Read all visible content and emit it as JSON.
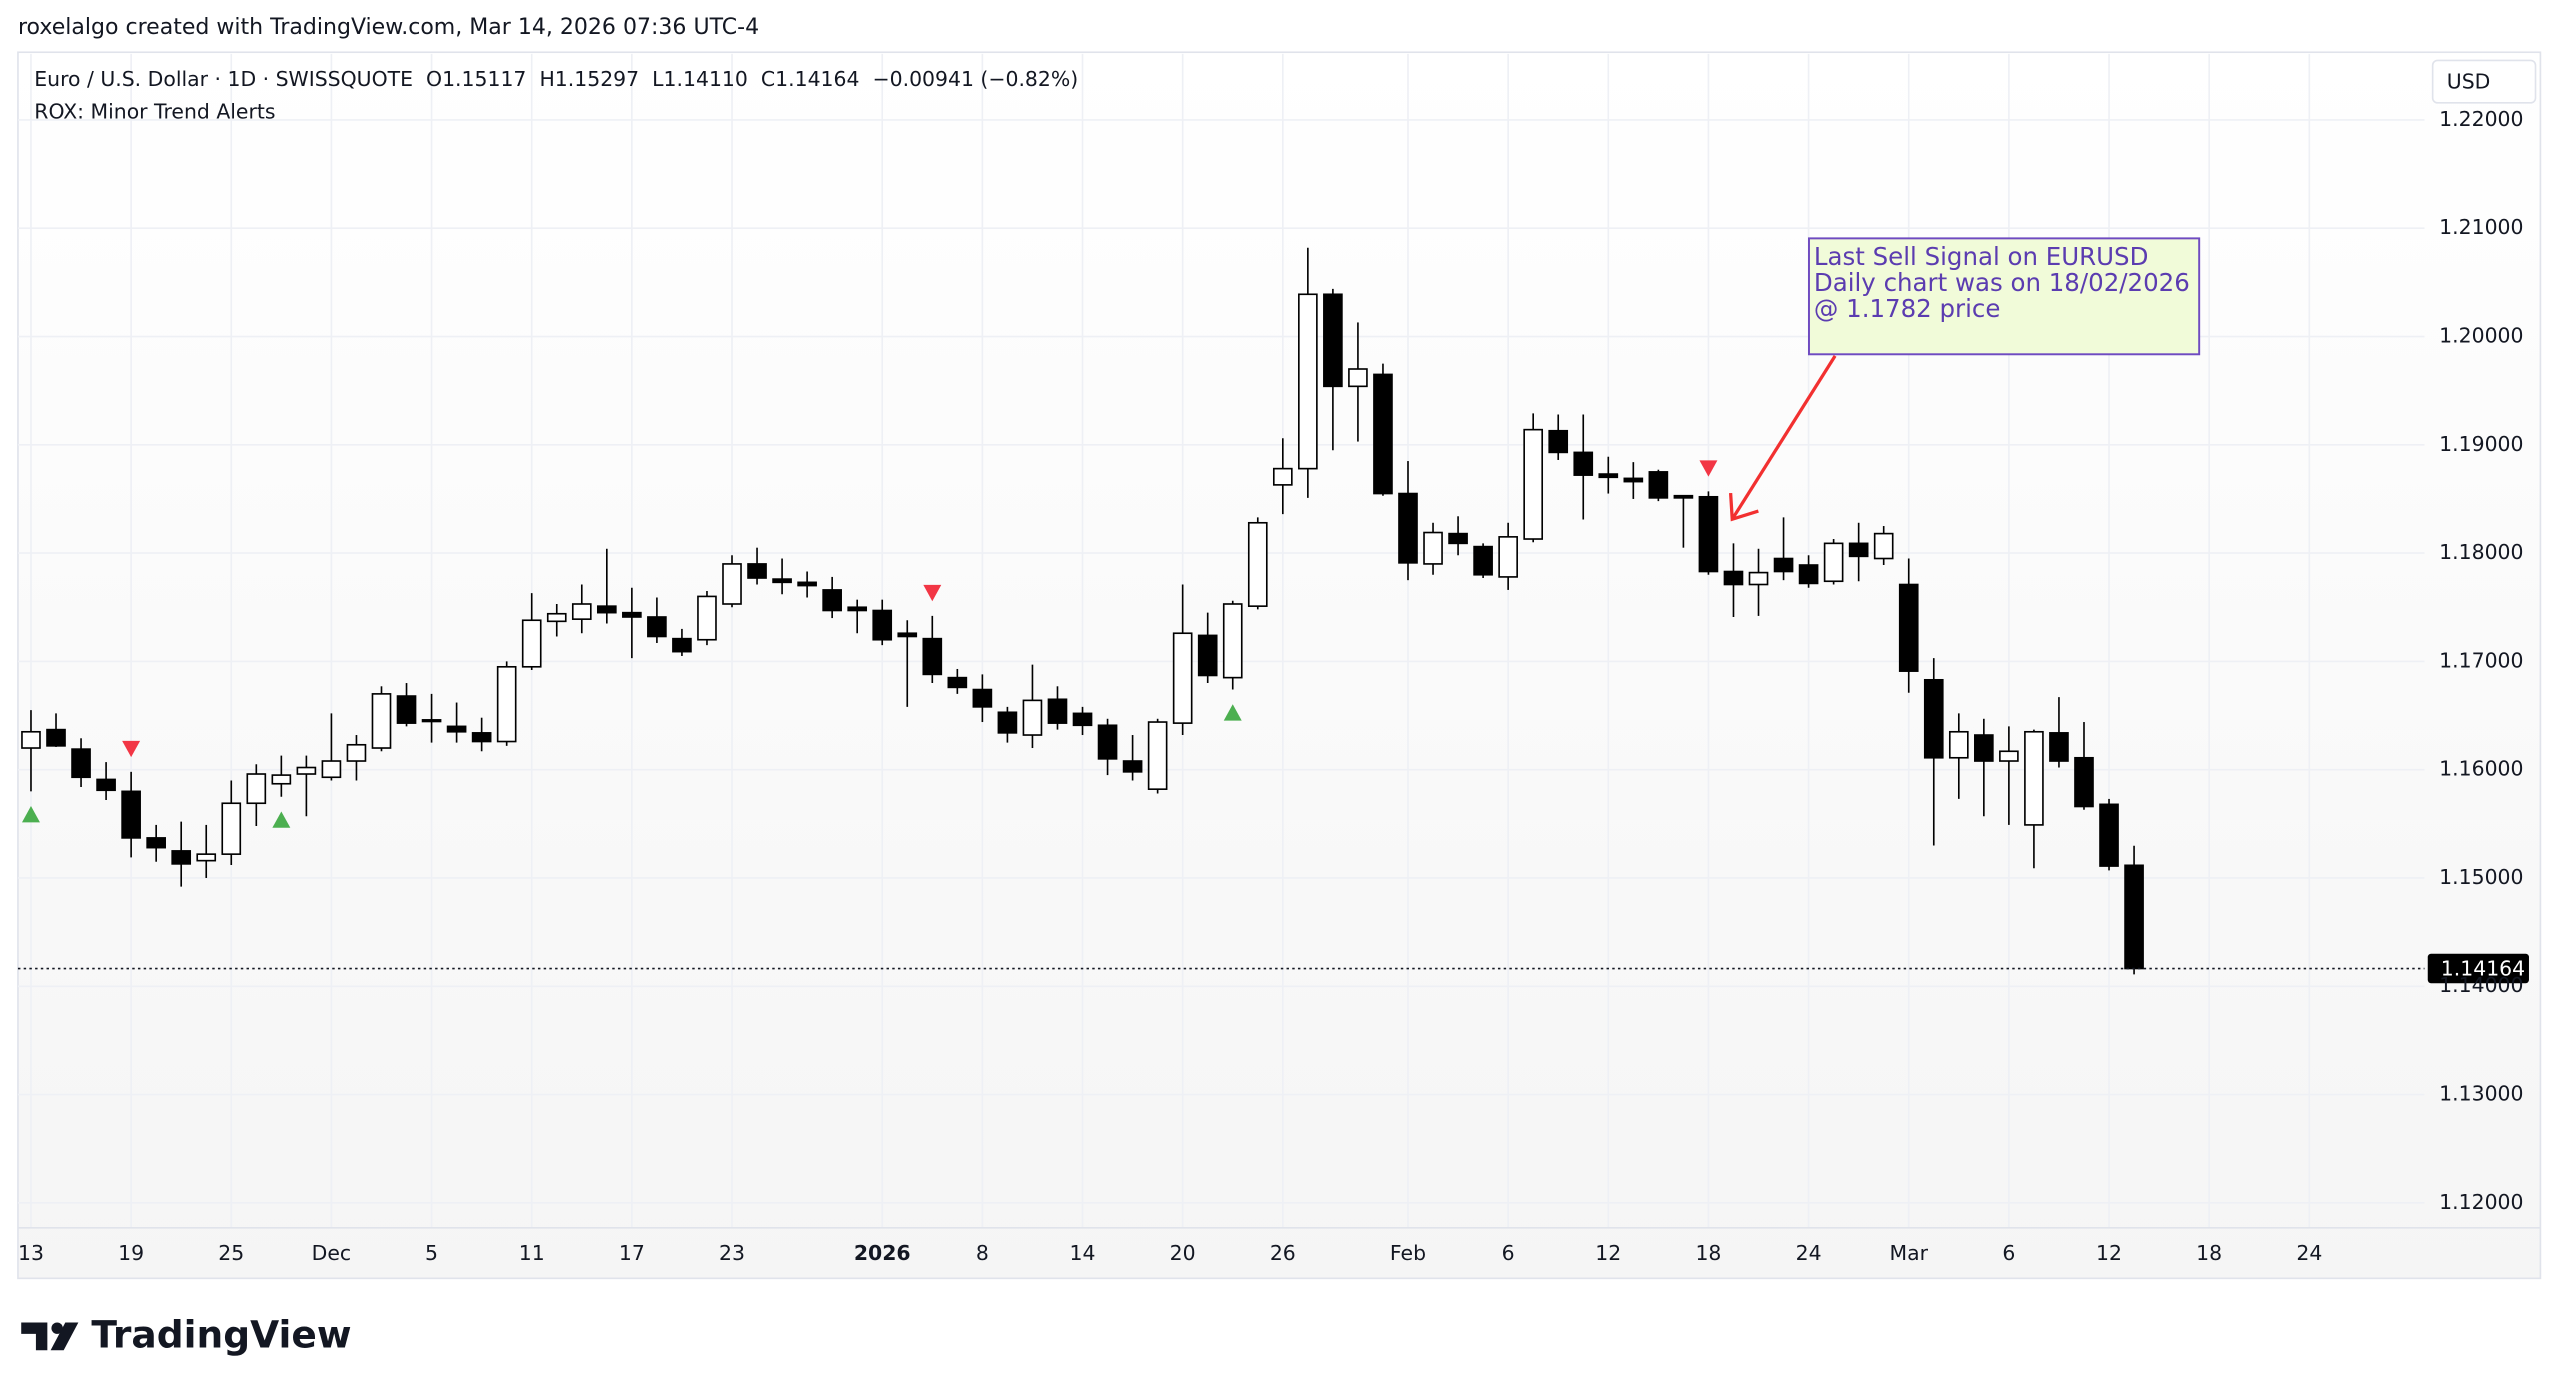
{
  "header": {
    "title": "roxelalgo created with TradingView.com, Mar 14, 2026 07:36 UTC-4"
  },
  "legend": {
    "symbol": "Euro / U.S. Dollar · 1D · SWISSQUOTE",
    "open": "O1.15117",
    "high": "H1.15297",
    "low": "L1.14110",
    "close": "C1.14164",
    "change": "−0.00941 (−0.82%)",
    "indicator": "ROX: Minor Trend Alerts"
  },
  "currency": "USD",
  "annotation": [
    "Last Sell Signal on EURUSD",
    "Daily chart was on 18/02/2026",
    "@ 1.1782 price"
  ],
  "footer": {
    "brand": "TradingView"
  },
  "chart_data": {
    "type": "candlestick",
    "up_color": "#ffffff",
    "down_color": "#000000",
    "buy_color": "#4caf50",
    "sell_color": "#f23645",
    "open": [
      1.162,
      1.1637,
      1.1619,
      1.1591,
      1.158,
      1.1537,
      1.1525,
      1.1516,
      1.1522,
      1.1569,
      1.1587,
      1.1596,
      1.1593,
      1.1608,
      1.162,
      1.1668,
      1.1646,
      1.164,
      1.1634,
      1.1626,
      1.1695,
      1.1737,
      1.1739,
      1.1751,
      1.1745,
      1.1741,
      1.1721,
      1.172,
      1.1753,
      1.179,
      1.1776,
      1.1773,
      1.1766,
      1.175,
      1.1747,
      1.1726,
      1.1721,
      1.1685,
      1.1674,
      1.1653,
      1.1632,
      1.1665,
      1.1652,
      1.1641,
      1.1608,
      1.1582,
      1.1643,
      1.1724,
      1.1685,
      1.1751,
      1.1863,
      1.1878,
      1.2039,
      1.1954,
      1.1965,
      1.1855,
      1.179,
      1.1818,
      1.1806,
      1.1778,
      1.1813,
      1.1913,
      1.1893,
      1.1873,
      1.1869,
      1.1875,
      1.1853,
      1.1852,
      1.1783,
      1.1771,
      1.1795,
      1.1789,
      1.1774,
      1.1809,
      1.1795,
      1.1771,
      1.1683,
      1.1611,
      1.1632,
      1.1608,
      1.1549,
      1.1634,
      1.1611,
      1.1568,
      1.15117
    ],
    "high": [
      1.1655,
      1.1652,
      1.1629,
      1.1607,
      1.1598,
      1.1549,
      1.1552,
      1.1549,
      1.159,
      1.1605,
      1.1613,
      1.1613,
      1.1652,
      1.1632,
      1.1677,
      1.168,
      1.167,
      1.1662,
      1.1648,
      1.17,
      1.1763,
      1.1753,
      1.1771,
      1.1804,
      1.1768,
      1.1759,
      1.173,
      1.1765,
      1.1798,
      1.1805,
      1.1795,
      1.1783,
      1.1778,
      1.1757,
      1.1757,
      1.1738,
      1.1742,
      1.1693,
      1.1688,
      1.1658,
      1.1697,
      1.1677,
      1.1658,
      1.1647,
      1.1632,
      1.1647,
      1.1771,
      1.1745,
      1.1756,
      1.1833,
      1.1906,
      1.2082,
      1.2044,
      1.2013,
      1.1975,
      1.1885,
      1.1828,
      1.1834,
      1.1809,
      1.1828,
      1.1929,
      1.1928,
      1.1928,
      1.1889,
      1.1884,
      1.1877,
      1.1853,
      1.1857,
      1.1809,
      1.1804,
      1.1833,
      1.1798,
      1.1813,
      1.1828,
      1.1825,
      1.1795,
      1.1703,
      1.1652,
      1.1647,
      1.164,
      1.1637,
      1.1667,
      1.1644,
      1.1573,
      1.15297
    ],
    "low": [
      1.158,
      1.1621,
      1.1584,
      1.1572,
      1.1519,
      1.1515,
      1.1492,
      1.15,
      1.1512,
      1.1548,
      1.1575,
      1.1557,
      1.159,
      1.159,
      1.1617,
      1.164,
      1.1625,
      1.1625,
      1.1617,
      1.1622,
      1.1692,
      1.1723,
      1.1726,
      1.1735,
      1.1703,
      1.1717,
      1.1705,
      1.1715,
      1.175,
      1.1771,
      1.1762,
      1.1759,
      1.174,
      1.1726,
      1.1715,
      1.1658,
      1.168,
      1.167,
      1.1644,
      1.1625,
      1.162,
      1.1637,
      1.1632,
      1.1595,
      1.159,
      1.1578,
      1.1632,
      1.168,
      1.1674,
      1.1748,
      1.1836,
      1.1851,
      1.1895,
      1.1903,
      1.1853,
      1.1775,
      1.178,
      1.1798,
      1.1777,
      1.1766,
      1.181,
      1.1886,
      1.1831,
      1.1855,
      1.185,
      1.1848,
      1.1805,
      1.178,
      1.1741,
      1.1742,
      1.1775,
      1.1768,
      1.1771,
      1.1774,
      1.1789,
      1.1671,
      1.153,
      1.1573,
      1.1557,
      1.1549,
      1.1509,
      1.1602,
      1.1563,
      1.1507,
      1.1411
    ],
    "close": [
      1.1635,
      1.1622,
      1.1593,
      1.1581,
      1.1537,
      1.1528,
      1.1513,
      1.1522,
      1.1569,
      1.1596,
      1.1595,
      1.1602,
      1.1608,
      1.1623,
      1.167,
      1.1643,
      1.1645,
      1.1635,
      1.1626,
      1.1695,
      1.1738,
      1.1744,
      1.1753,
      1.1745,
      1.1741,
      1.1723,
      1.1709,
      1.176,
      1.179,
      1.1777,
      1.1773,
      1.177,
      1.1747,
      1.1747,
      1.172,
      1.1723,
      1.1688,
      1.1676,
      1.1658,
      1.1634,
      1.1664,
      1.1643,
      1.1641,
      1.161,
      1.1598,
      1.1644,
      1.1726,
      1.1687,
      1.1753,
      1.1828,
      1.1878,
      1.2039,
      1.1954,
      1.197,
      1.1855,
      1.1791,
      1.1819,
      1.1809,
      1.178,
      1.1815,
      1.1914,
      1.1893,
      1.1872,
      1.187,
      1.1866,
      1.1851,
      1.1851,
      1.1783,
      1.1771,
      1.1782,
      1.1783,
      1.1772,
      1.1809,
      1.1797,
      1.1818,
      1.1691,
      1.1611,
      1.1635,
      1.1608,
      1.1617,
      1.1635,
      1.1608,
      1.1566,
      1.1511,
      1.14164
    ],
    "last_price": 1.14164,
    "value_labels": {
      "last_price": "1.14164"
    },
    "buy_signals": [
      0,
      10,
      48
    ],
    "sell_signals": [
      4,
      36,
      67
    ],
    "xlim": [
      -0.52,
      95.6
    ],
    "xticks": [
      {
        "value": 0,
        "label": "13"
      },
      {
        "value": 4,
        "label": "19"
      },
      {
        "value": 8,
        "label": "25"
      },
      {
        "value": 12,
        "label": "Dec"
      },
      {
        "value": 16,
        "label": "5"
      },
      {
        "value": 20,
        "label": "11"
      },
      {
        "value": 24,
        "label": "17"
      },
      {
        "value": 28,
        "label": "23"
      },
      {
        "value": 34,
        "label": "2026"
      },
      {
        "value": 38,
        "label": "8"
      },
      {
        "value": 42,
        "label": "14"
      },
      {
        "value": 46,
        "label": "20"
      },
      {
        "value": 50,
        "label": "26"
      },
      {
        "value": 55,
        "label": "Feb"
      },
      {
        "value": 59,
        "label": "6"
      },
      {
        "value": 63,
        "label": "12"
      },
      {
        "value": 67,
        "label": "18"
      },
      {
        "value": 71,
        "label": "24"
      },
      {
        "value": 75,
        "label": "Mar"
      },
      {
        "value": 79,
        "label": "6"
      },
      {
        "value": 83,
        "label": "12"
      },
      {
        "value": 87,
        "label": "18"
      },
      {
        "value": 91,
        "label": "24"
      }
    ],
    "ylim": [
      1.1177,
      1.2261
    ],
    "yticks": [
      {
        "value": 1.12,
        "label": "1.12000"
      },
      {
        "value": 1.13,
        "label": "1.13000"
      },
      {
        "value": 1.14,
        "label": "1.14000"
      },
      {
        "value": 1.15,
        "label": "1.15000"
      },
      {
        "value": 1.16,
        "label": "1.16000"
      },
      {
        "value": 1.17,
        "label": "1.17000"
      },
      {
        "value": 1.18,
        "label": "1.18000"
      },
      {
        "value": 1.19,
        "label": "1.19000"
      },
      {
        "value": 1.2,
        "label": "1.20000"
      },
      {
        "value": 1.21,
        "label": "1.21000"
      },
      {
        "value": 1.22,
        "label": "1.22000"
      }
    ],
    "grid": true
  }
}
